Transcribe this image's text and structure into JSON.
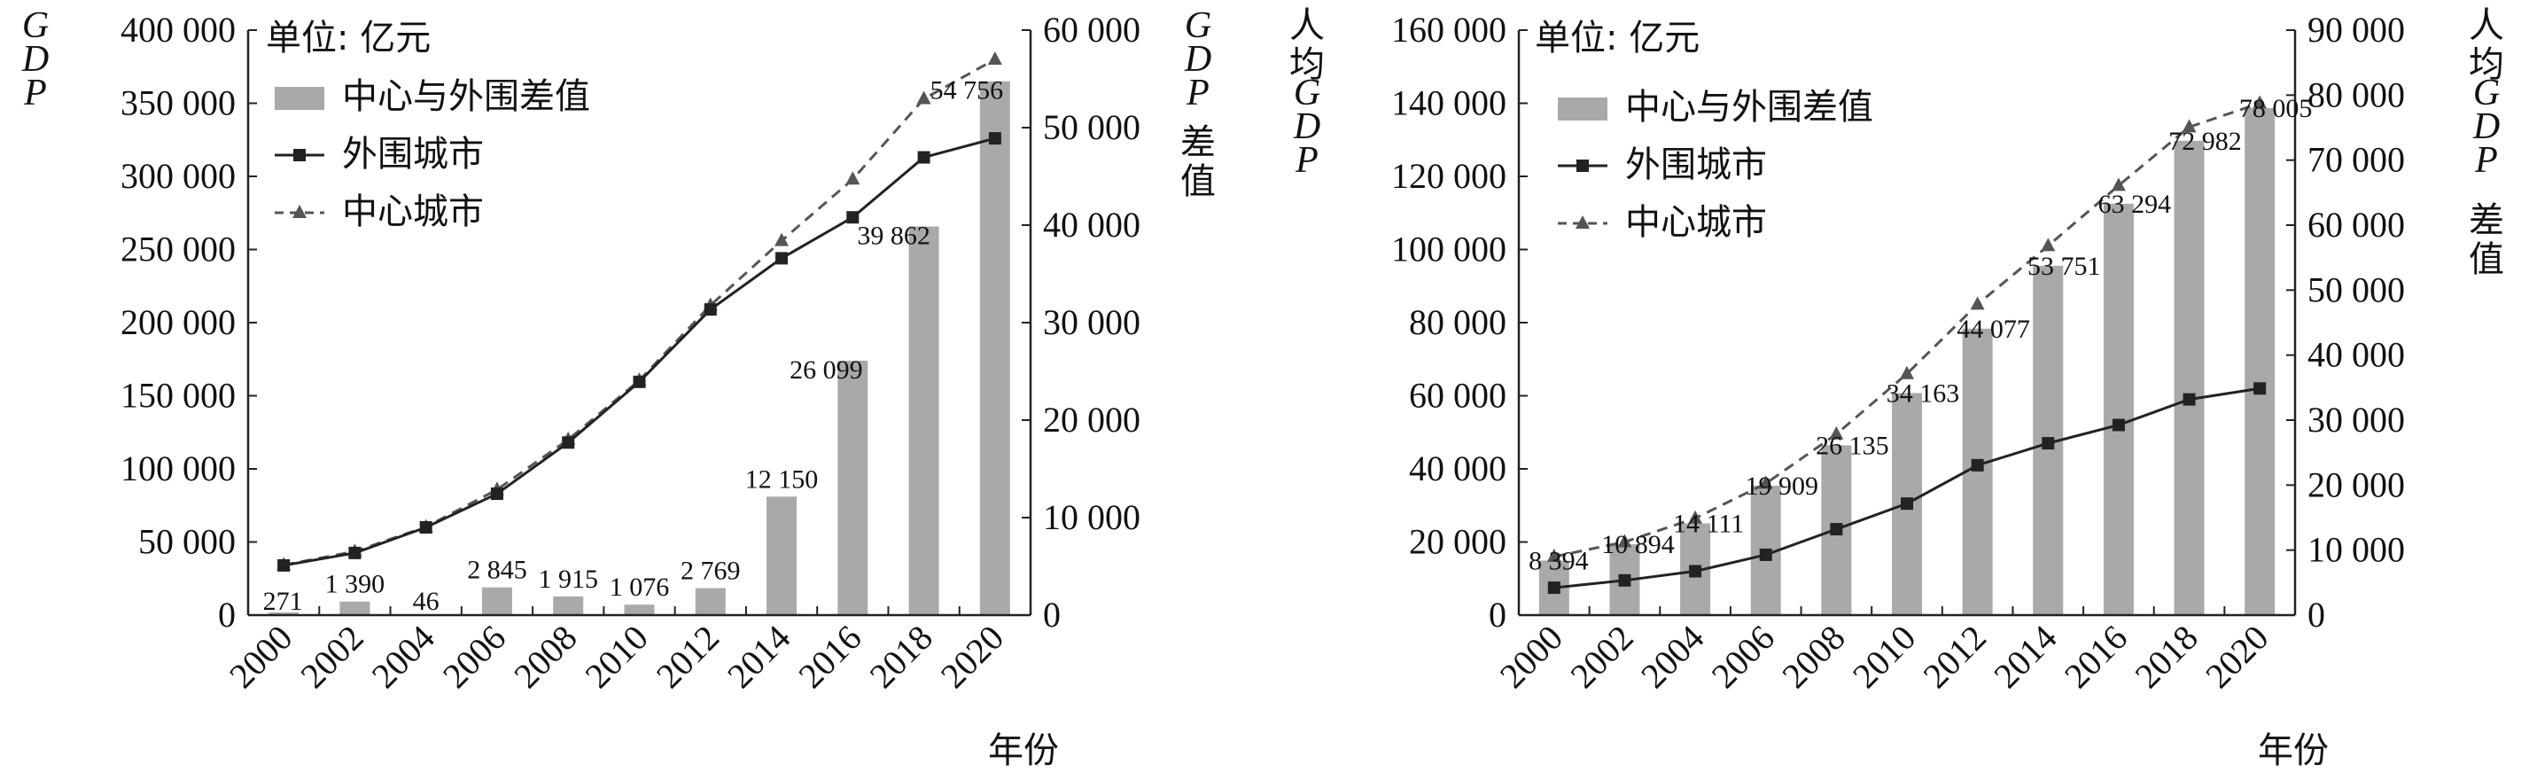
{
  "chart_data": [
    {
      "type": "bar+line",
      "unit_note": "单位: 亿元",
      "xlabel": "年份",
      "left_axis_label": [
        "G",
        "D",
        "P"
      ],
      "right_axis_label": [
        "G",
        "D",
        "P",
        "差",
        "值"
      ],
      "ylim_left": [
        0,
        400000
      ],
      "ylim_right": [
        0,
        60000
      ],
      "yticks_left": [
        "0",
        "50 000",
        "100 000",
        "150 000",
        "200 000",
        "250 000",
        "300 000",
        "350 000",
        "400 000"
      ],
      "yticks_right": [
        "0",
        "10 000",
        "20 000",
        "30 000",
        "40 000",
        "50 000",
        "60 000"
      ],
      "categories": [
        "2000",
        "2002",
        "2004",
        "2006",
        "2008",
        "2010",
        "2012",
        "2014",
        "2016",
        "2018",
        "2020"
      ],
      "legend": {
        "placement": "top-left",
        "bar": "中心与外围差值",
        "line1": "外围城市",
        "line2": "中心城市"
      },
      "bar_values": [
        271,
        1390,
        46,
        2845,
        1915,
        1076,
        2769,
        12150,
        26099,
        39862,
        54756
      ],
      "bar_labels": [
        "271",
        "1 390",
        "46",
        "2 845",
        "1 915",
        "1 076",
        "2 769",
        "12 150",
        "26 099",
        "39 862",
        "54 756"
      ],
      "series_outer": [
        34000,
        42500,
        60000,
        83000,
        118000,
        159500,
        209000,
        244000,
        272000,
        313000,
        326000
      ],
      "series_center": [
        34300,
        43500,
        60300,
        85800,
        120000,
        160500,
        211800,
        256000,
        298000,
        353000,
        380000
      ],
      "colors": {
        "bar": "#a9a9a9",
        "outer": "#222222",
        "center": "#555555"
      }
    },
    {
      "type": "bar+line",
      "unit_note": "单位: 亿元",
      "xlabel": "年份",
      "left_axis_label": [
        "人",
        "均",
        "G",
        "D",
        "P"
      ],
      "right_axis_label": [
        "人",
        "均",
        "G",
        "D",
        "P",
        "差",
        "值"
      ],
      "ylim_left": [
        0,
        160000
      ],
      "ylim_right": [
        0,
        90000
      ],
      "yticks_left": [
        "0",
        "20 000",
        "40 000",
        "60 000",
        "80 000",
        "100 000",
        "120 000",
        "140 000",
        "160 000"
      ],
      "yticks_right": [
        "0",
        "10 000",
        "20 000",
        "30 000",
        "40 000",
        "50 000",
        "60 000",
        "70 000",
        "80 000",
        "90 000"
      ],
      "categories": [
        "2000",
        "2002",
        "2004",
        "2006",
        "2008",
        "2010",
        "2012",
        "2014",
        "2016",
        "2018",
        "2020"
      ],
      "legend": {
        "placement": "top-left",
        "bar": "中心与外围差值",
        "line1": "外围城市",
        "line2": "中心城市"
      },
      "bar_values": [
        8394,
        10894,
        14111,
        19909,
        26135,
        34163,
        44077,
        53751,
        63294,
        72982,
        78005
      ],
      "bar_labels": [
        "8 394",
        "10 894",
        "14 111",
        "19 909",
        "26 135",
        "34 163",
        "44 077",
        "53 751",
        "63 294",
        "72 982",
        "78 005"
      ],
      "series_outer": [
        7500,
        9500,
        12000,
        16500,
        23500,
        30500,
        41000,
        47000,
        52000,
        59000,
        62000
      ],
      "series_center": [
        16000,
        20000,
        26500,
        36000,
        49500,
        66000,
        85000,
        101000,
        117500,
        133500,
        140000
      ],
      "colors": {
        "bar": "#a9a9a9",
        "outer": "#222222",
        "center": "#555555"
      }
    }
  ]
}
